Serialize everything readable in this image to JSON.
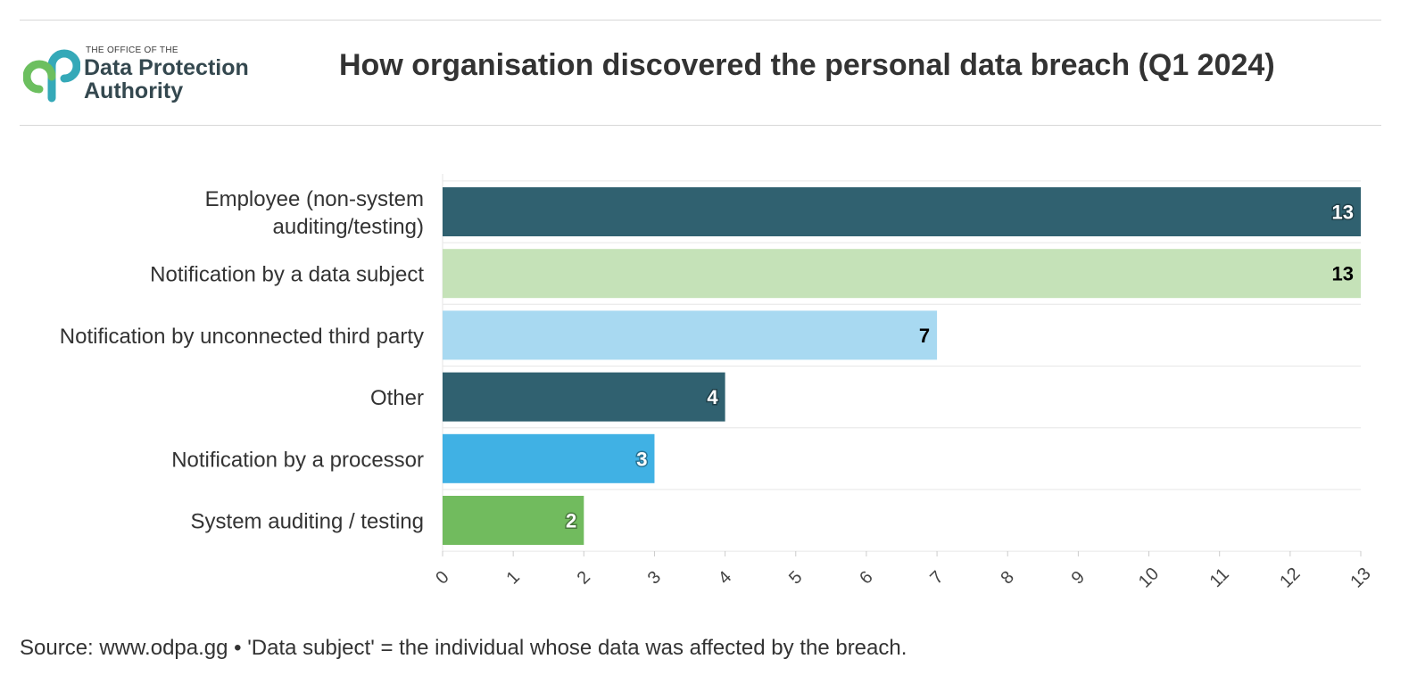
{
  "header": {
    "logo_small": "THE OFFICE OF THE",
    "logo_line1": "Data Protection",
    "logo_line2": "Authority",
    "title": "How organisation discovered the personal data breach (Q1 2024)"
  },
  "footer": {
    "source": "Source: www.odpa.gg • 'Data subject' = the individual whose data was affected by the breach."
  },
  "chart_data": {
    "type": "bar",
    "orientation": "horizontal",
    "title": "How organisation discovered the personal data breach (Q1 2024)",
    "categories": [
      [
        "Employee (non-system",
        "auditing/testing)"
      ],
      [
        "Notification by a data subject"
      ],
      [
        "Notification by unconnected third party"
      ],
      [
        "Other"
      ],
      [
        "Notification by a processor"
      ],
      [
        "System auditing / testing"
      ]
    ],
    "values": [
      13,
      13,
      7,
      4,
      3,
      2
    ],
    "colors": [
      "#306170",
      "#c5e2b8",
      "#a8d9f1",
      "#306170",
      "#40b1e4",
      "#71bb5e"
    ],
    "label_colors": [
      "#ffffff",
      "#000000",
      "#000000",
      "#ffffff",
      "#ffffff",
      "#ffffff"
    ],
    "xlim": [
      0,
      13
    ],
    "xticks": [
      0,
      1,
      2,
      3,
      4,
      5,
      6,
      7,
      8,
      9,
      10,
      11,
      12,
      13
    ],
    "grid": true,
    "data_labels": true,
    "legend": "none"
  }
}
